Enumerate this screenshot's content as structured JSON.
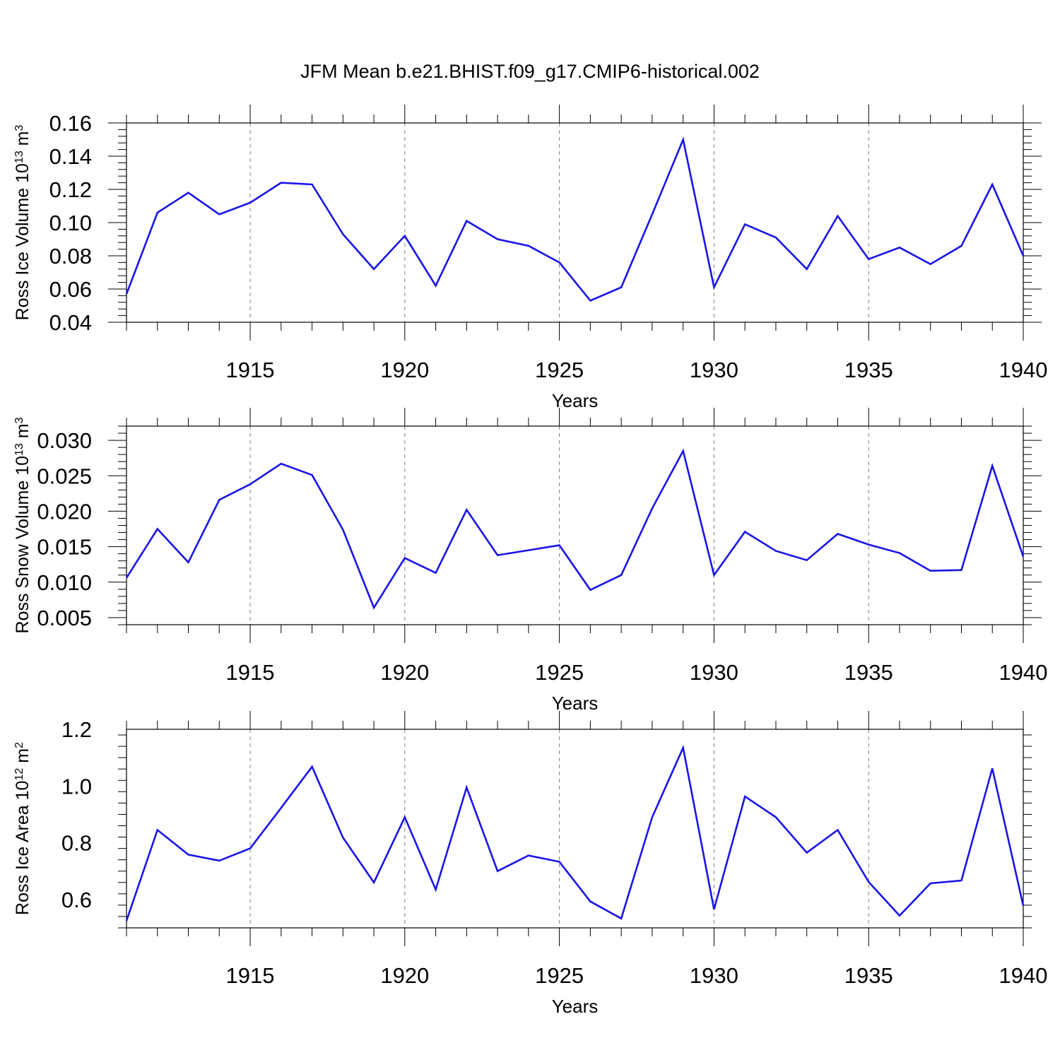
{
  "title": "JFM Mean b.e21.BHIST.f09_g17.CMIP6-historical.002",
  "colors": {
    "line": "#1a14e8",
    "axis": "#000000",
    "grid": "#7f7f7f"
  },
  "chart_data": [
    {
      "type": "line",
      "ylabel": {
        "text": "Ross Ice Volume 10",
        "sup": "13",
        "unit": " m",
        "unit_sup": "3"
      },
      "xlabel": "Years",
      "xlim": [
        1911,
        1940
      ],
      "ylim": [
        0.04,
        0.16
      ],
      "yticks": [
        "0.04",
        "0.06",
        "0.08",
        "0.10",
        "0.12",
        "0.14",
        "0.16"
      ],
      "xticks": [
        "1915",
        "1920",
        "1925",
        "1930",
        "1935",
        "1940"
      ],
      "grid": "vertical dashed at major x ticks",
      "x": [
        1911,
        1912,
        1913,
        1914,
        1915,
        1916,
        1917,
        1918,
        1919,
        1920,
        1921,
        1922,
        1923,
        1924,
        1925,
        1926,
        1927,
        1928,
        1929,
        1930,
        1931,
        1932,
        1933,
        1934,
        1935,
        1936,
        1937,
        1938,
        1939,
        1940
      ],
      "values": [
        0.057,
        0.106,
        0.118,
        0.105,
        0.112,
        0.124,
        0.123,
        0.093,
        0.072,
        0.092,
        0.062,
        0.101,
        0.09,
        0.086,
        0.076,
        0.053,
        0.061,
        0.105,
        0.15,
        0.061,
        0.099,
        0.091,
        0.072,
        0.104,
        0.078,
        0.085,
        0.075,
        0.086,
        0.123,
        0.08
      ]
    },
    {
      "type": "line",
      "ylabel": {
        "text": "Ross Snow Volume 10",
        "sup": "13",
        "unit": " m",
        "unit_sup": "3"
      },
      "xlabel": "Years",
      "xlim": [
        1911,
        1940
      ],
      "ylim": [
        0.004,
        0.032
      ],
      "yticks": [
        "0.005",
        "0.010",
        "0.015",
        "0.020",
        "0.025",
        "0.030"
      ],
      "xticks": [
        "1915",
        "1920",
        "1925",
        "1930",
        "1935",
        "1940"
      ],
      "grid": "vertical dashed at major x ticks",
      "x": [
        1911,
        1912,
        1913,
        1914,
        1915,
        1916,
        1917,
        1918,
        1919,
        1920,
        1921,
        1922,
        1923,
        1924,
        1925,
        1926,
        1927,
        1928,
        1929,
        1930,
        1931,
        1932,
        1933,
        1934,
        1935,
        1936,
        1937,
        1938,
        1939,
        1940
      ],
      "values": [
        0.0106,
        0.0175,
        0.0128,
        0.0216,
        0.0238,
        0.0267,
        0.0251,
        0.0174,
        0.0064,
        0.0134,
        0.0113,
        0.0202,
        0.0138,
        0.0145,
        0.0152,
        0.0089,
        0.011,
        0.0204,
        0.0285,
        0.011,
        0.0171,
        0.0144,
        0.0131,
        0.0168,
        0.0153,
        0.0141,
        0.0116,
        0.0117,
        0.0264,
        0.0136
      ]
    },
    {
      "type": "line",
      "ylabel": {
        "text": "Ross Ice Area 10",
        "sup": "12",
        "unit": " m",
        "unit_sup": "2"
      },
      "xlabel": "Years",
      "xlim": [
        1911,
        1940
      ],
      "ylim": [
        0.5,
        1.2
      ],
      "yticks": [
        "0.6",
        "0.8",
        "1.0",
        "1.2"
      ],
      "xticks": [
        "1915",
        "1920",
        "1925",
        "1930",
        "1935",
        "1940"
      ],
      "grid": "vertical dashed at major x ticks",
      "x": [
        1911,
        1912,
        1913,
        1914,
        1915,
        1916,
        1917,
        1918,
        1919,
        1920,
        1921,
        1922,
        1923,
        1924,
        1925,
        1926,
        1927,
        1928,
        1929,
        1930,
        1931,
        1932,
        1933,
        1934,
        1935,
        1936,
        1937,
        1938,
        1939,
        1940
      ],
      "values": [
        0.525,
        0.845,
        0.758,
        0.737,
        0.78,
        0.923,
        1.068,
        0.818,
        0.66,
        0.89,
        0.635,
        0.995,
        0.7,
        0.755,
        0.733,
        0.593,
        0.533,
        0.89,
        1.135,
        0.565,
        0.963,
        0.89,
        0.765,
        0.845,
        0.662,
        0.543,
        0.657,
        0.667,
        1.062,
        0.578
      ]
    }
  ]
}
